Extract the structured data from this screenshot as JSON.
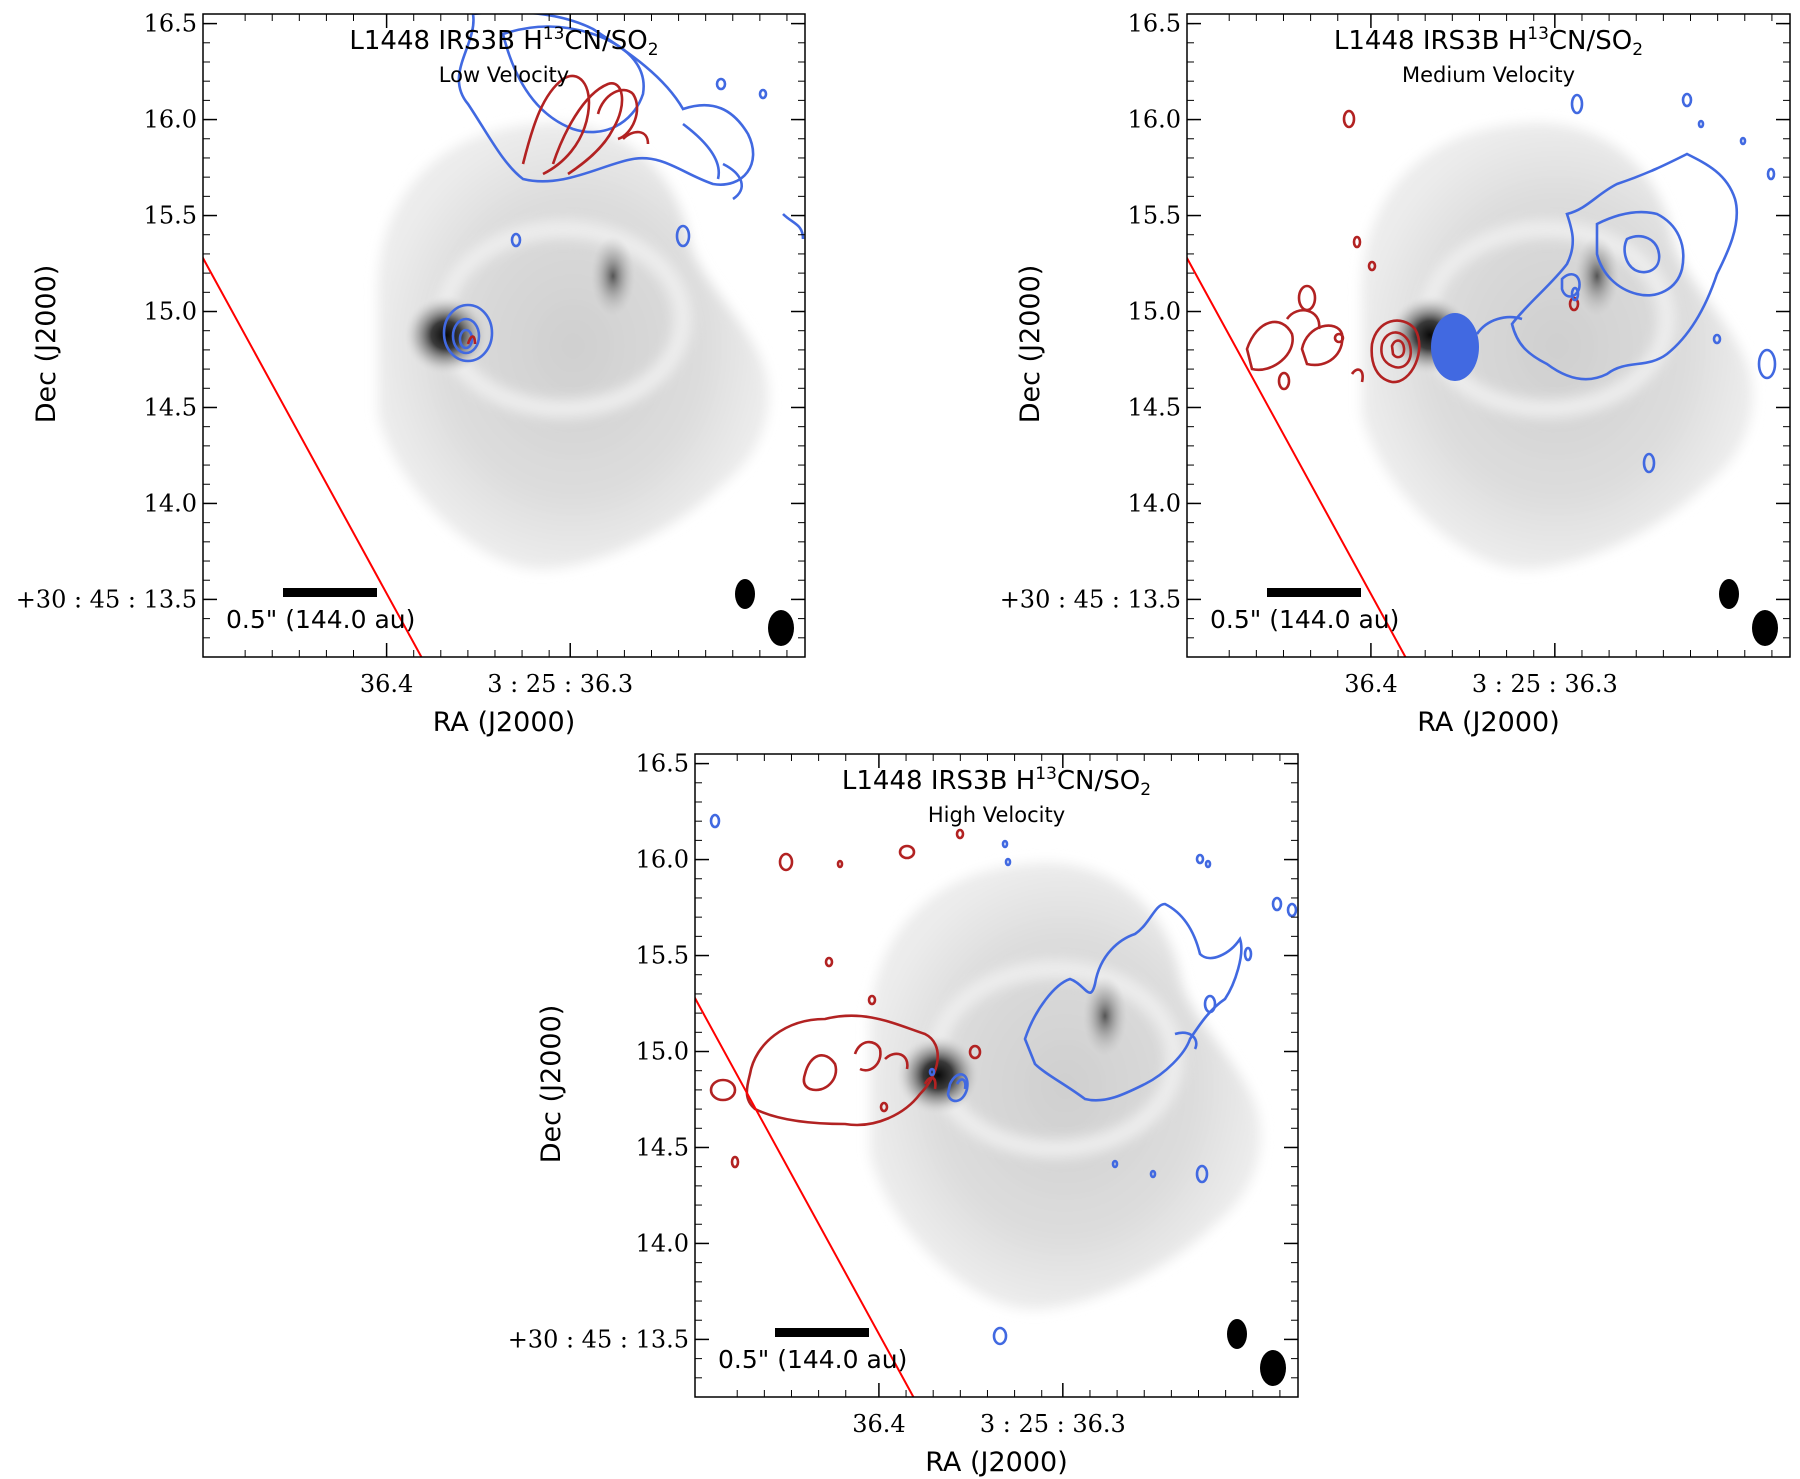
{
  "chart_data": [
    {
      "type": "contour",
      "title_main": "L1448 IRS3B H",
      "title_sup": "13",
      "title_mid": "CN/SO",
      "title_sub": "2",
      "subtitle": "Low Velocity",
      "xlabel": "RA (J2000)",
      "ylabel": "Dec (J2000)",
      "x_tick_labels": [
        "36.4",
        "3 : 25 : 36.3"
      ],
      "y_tick_labels": [
        "16.5",
        "16.0",
        "15.5",
        "15.0",
        "14.5",
        "14.0",
        "+30 : 45 : 13.5"
      ],
      "y_ticks": [
        16.5,
        16.0,
        15.5,
        15.0,
        14.5,
        14.0,
        13.5
      ],
      "ylim": [
        13.2,
        16.55
      ],
      "scale_bar_label": "0.5\" (144.0 au)",
      "series": [
        {
          "name": "H13CN redshifted",
          "color": "#b22222"
        },
        {
          "name": "SO2 blueshifted",
          "color": "#4169e1"
        },
        {
          "name": "outflow axis",
          "color": "#ff0000"
        }
      ]
    },
    {
      "type": "contour",
      "title_main": "L1448 IRS3B H",
      "title_sup": "13",
      "title_mid": "CN/SO",
      "title_sub": "2",
      "subtitle": "Medium Velocity",
      "xlabel": "RA (J2000)",
      "ylabel": "Dec (J2000)",
      "x_tick_labels": [
        "36.4",
        "3 : 25 : 36.3"
      ],
      "y_tick_labels": [
        "16.5",
        "16.0",
        "15.5",
        "15.0",
        "14.5",
        "14.0",
        "+30 : 45 : 13.5"
      ],
      "y_ticks": [
        16.5,
        16.0,
        15.5,
        15.0,
        14.5,
        14.0,
        13.5
      ],
      "ylim": [
        13.2,
        16.55
      ],
      "scale_bar_label": "0.5\" (144.0 au)",
      "series": [
        {
          "name": "H13CN redshifted",
          "color": "#b22222"
        },
        {
          "name": "SO2 blueshifted",
          "color": "#4169e1"
        },
        {
          "name": "outflow axis",
          "color": "#ff0000"
        }
      ]
    },
    {
      "type": "contour",
      "title_main": "L1448 IRS3B H",
      "title_sup": "13",
      "title_mid": "CN/SO",
      "title_sub": "2",
      "subtitle": "High Velocity",
      "xlabel": "RA (J2000)",
      "ylabel": "Dec (J2000)",
      "x_tick_labels": [
        "36.4",
        "3 : 25 : 36.3"
      ],
      "y_tick_labels": [
        "16.5",
        "16.0",
        "15.5",
        "15.0",
        "14.5",
        "14.0",
        "+30 : 45 : 13.5"
      ],
      "y_ticks": [
        16.5,
        16.0,
        15.5,
        15.0,
        14.5,
        14.0,
        13.5
      ],
      "ylim": [
        13.2,
        16.55
      ],
      "scale_bar_label": "0.5\" (144.0 au)",
      "series": [
        {
          "name": "H13CN redshifted",
          "color": "#b22222"
        },
        {
          "name": "SO2 blueshifted",
          "color": "#4169e1"
        },
        {
          "name": "outflow axis",
          "color": "#ff0000"
        }
      ]
    }
  ]
}
